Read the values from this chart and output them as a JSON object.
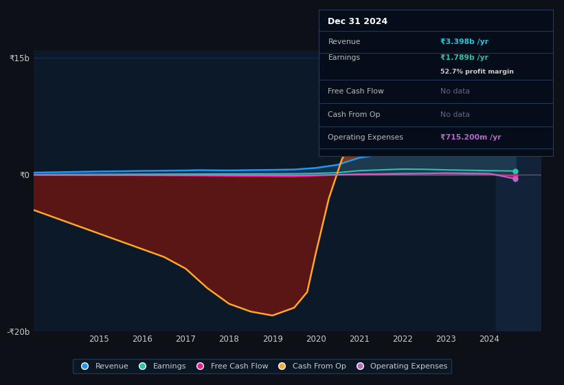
{
  "background_color": "#0d1117",
  "chart_bg": "#0b1929",
  "ylabel_top": "₹15b",
  "ylabel_bottom": "-₹20b",
  "ylabel_zero": "₹0",
  "x_ticks": [
    2015,
    2016,
    2017,
    2018,
    2019,
    2020,
    2021,
    2022,
    2023,
    2024
  ],
  "revenue_color": "#2196f3",
  "earnings_color": "#26c6a6",
  "free_cash_flow_color": "#e91e8c",
  "cash_from_op_color": "#ffa726",
  "operating_expenses_color": "#ba68c8",
  "fill_revenue_color": "#0d3a5c",
  "fill_cash_op_pos_color": "#7a3a1a",
  "fill_cash_op_neg_color": "#5a1515",
  "table_title": "Dec 31 2024",
  "table_revenue_label": "Revenue",
  "table_revenue_val": "₹3.398b /yr",
  "table_revenue_color": "#26c6da",
  "table_earnings_label": "Earnings",
  "table_earnings_val": "₹1.789b /yr",
  "table_earnings_color": "#26c6a6",
  "table_margin": "52.7% profit margin",
  "table_fcf_label": "Free Cash Flow",
  "table_fcf_val": "No data",
  "table_cashop_label": "Cash From Op",
  "table_cashop_val": "No data",
  "table_opex_label": "Operating Expenses",
  "table_opex_val": "₹715.200m /yr",
  "table_opex_color": "#ba68c8",
  "nodata_color": "#666688"
}
